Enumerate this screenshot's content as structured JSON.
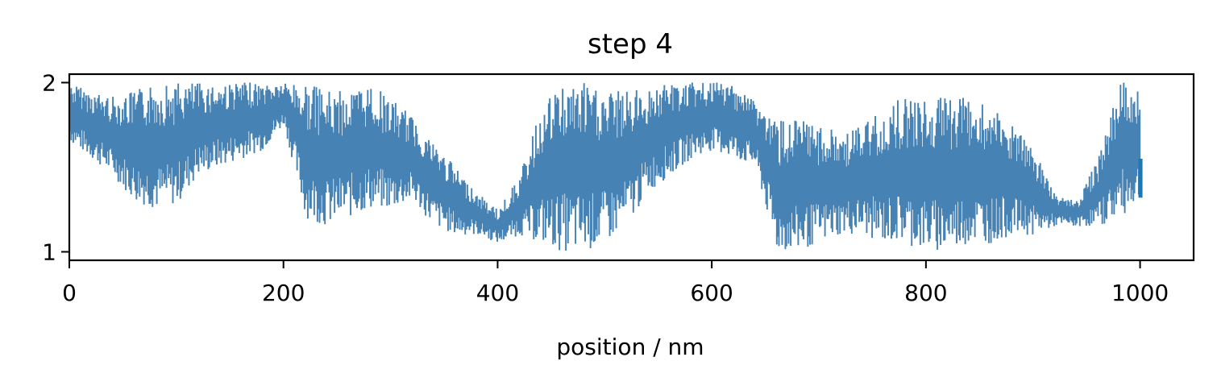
{
  "chart_data": {
    "type": "line",
    "title": "step 4",
    "xlabel": "position / nm",
    "ylabel": "",
    "xlim": [
      0,
      1050
    ],
    "ylim": [
      0.95,
      2.05
    ],
    "xticks": [
      0,
      200,
      400,
      600,
      800,
      1000
    ],
    "yticks": [
      1,
      2
    ],
    "grid": false,
    "legend": "none",
    "series_color": "#4682b4",
    "end_marker_color": "#1f77b4",
    "envelope": {
      "x": [
        0,
        20,
        40,
        60,
        80,
        100,
        120,
        140,
        160,
        180,
        200,
        220,
        240,
        260,
        280,
        300,
        320,
        340,
        360,
        380,
        400,
        420,
        440,
        460,
        480,
        500,
        520,
        540,
        560,
        580,
        600,
        620,
        640,
        660,
        680,
        700,
        720,
        740,
        760,
        780,
        800,
        820,
        840,
        860,
        880,
        900,
        920,
        940,
        960,
        980,
        1000
      ],
      "low": [
        1.65,
        1.55,
        1.45,
        1.3,
        1.25,
        1.28,
        1.45,
        1.5,
        1.55,
        1.6,
        1.75,
        1.2,
        1.15,
        1.2,
        1.25,
        1.25,
        1.3,
        1.15,
        1.1,
        1.1,
        1.05,
        1.1,
        1.05,
        1.0,
        1.0,
        1.05,
        1.15,
        1.35,
        1.45,
        1.55,
        1.6,
        1.55,
        1.5,
        1.0,
        1.0,
        1.05,
        1.1,
        1.1,
        1.05,
        1.05,
        1.0,
        1.0,
        1.05,
        1.05,
        1.1,
        1.1,
        1.15,
        1.15,
        1.15,
        1.2,
        1.3
      ],
      "high": [
        2.0,
        1.95,
        1.92,
        1.95,
        2.0,
        2.0,
        2.0,
        2.0,
        2.0,
        2.0,
        2.0,
        2.0,
        1.95,
        1.95,
        2.0,
        1.9,
        1.8,
        1.65,
        1.5,
        1.35,
        1.25,
        1.45,
        1.85,
        2.0,
        2.0,
        1.95,
        1.95,
        1.97,
        2.0,
        2.0,
        2.0,
        2.0,
        1.9,
        1.78,
        1.78,
        1.75,
        1.7,
        1.75,
        1.85,
        1.92,
        1.9,
        1.92,
        1.92,
        1.85,
        1.75,
        1.6,
        1.35,
        1.3,
        1.55,
        2.0,
        2.0
      ],
      "bins_per_segment": 20
    }
  }
}
